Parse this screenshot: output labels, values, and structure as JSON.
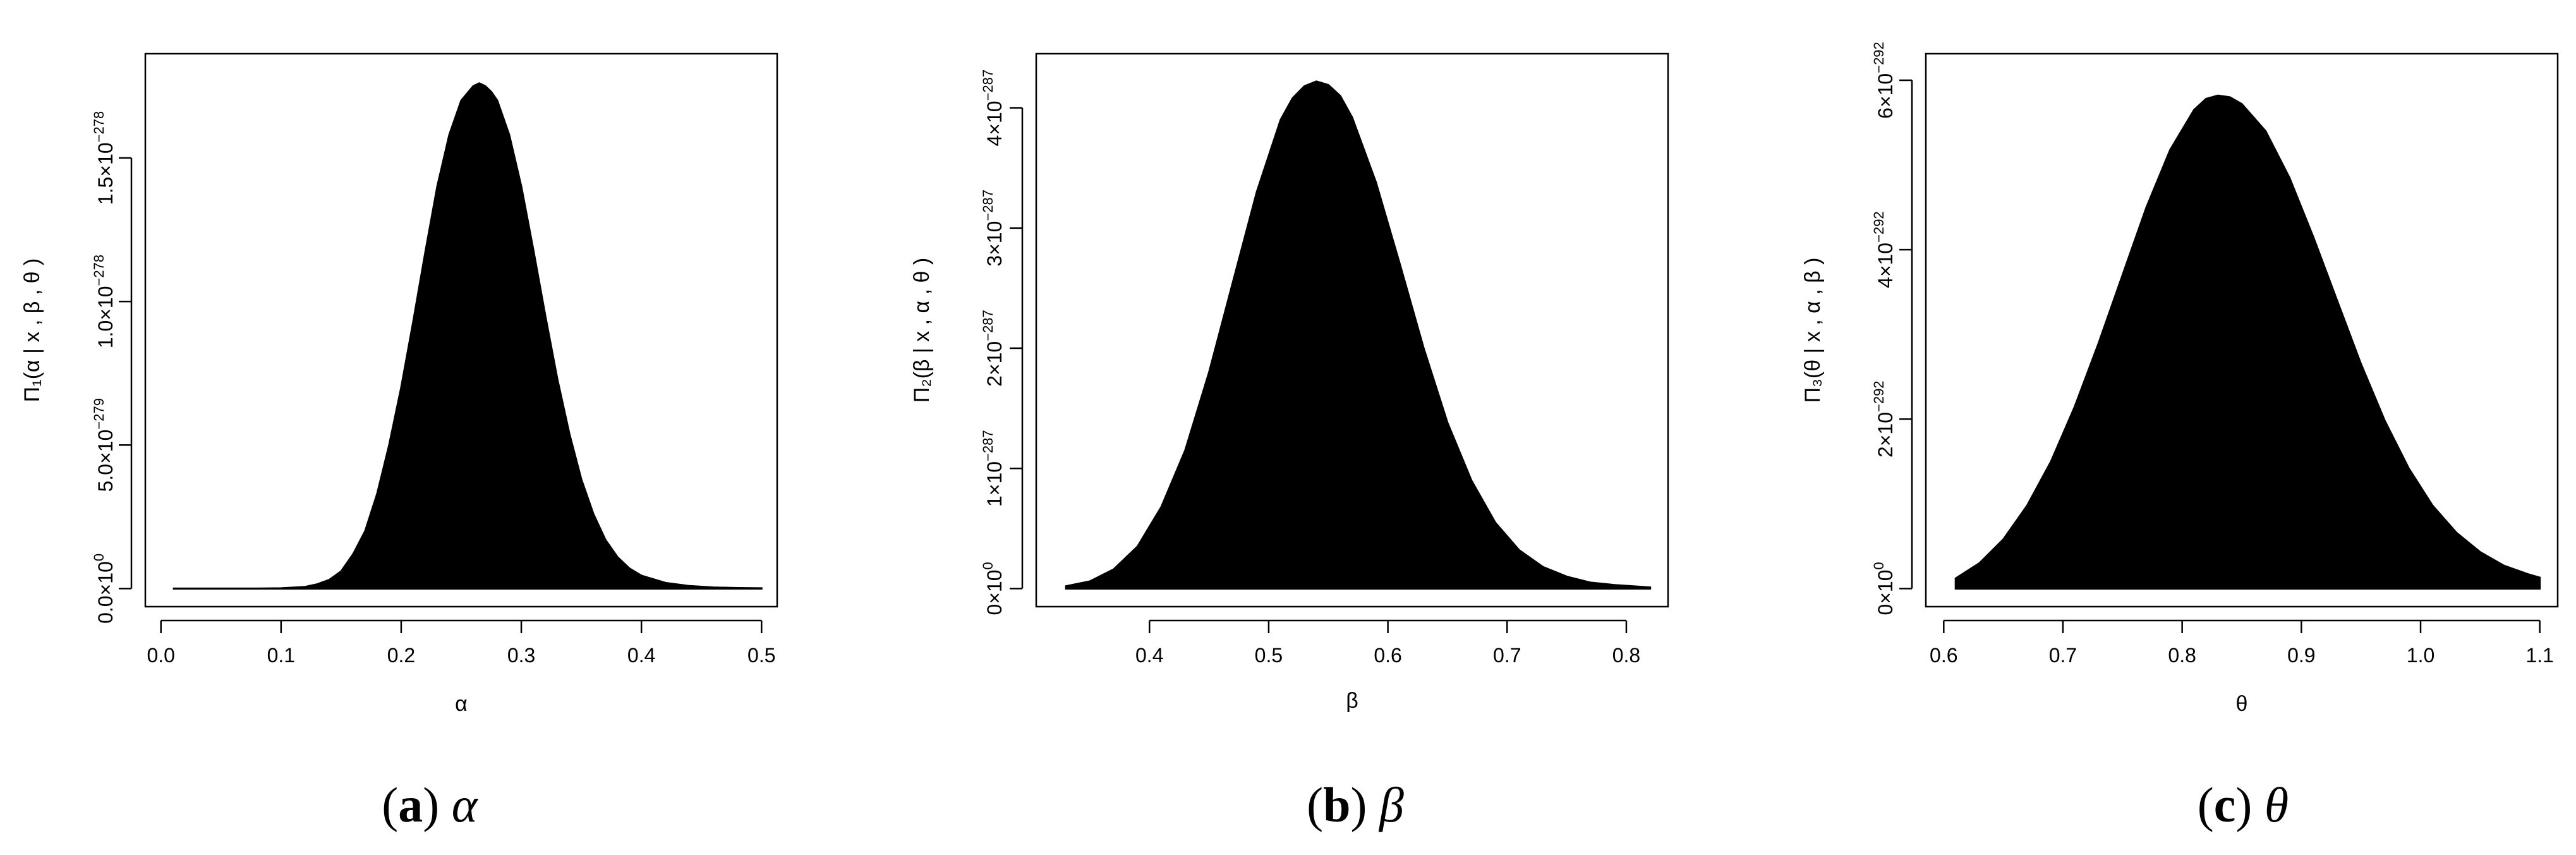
{
  "chart_data": [
    {
      "type": "area",
      "caption": {
        "open": "(",
        "letter": "a",
        "close": ")",
        "symbol": "α"
      },
      "xlabel": "α",
      "ylabel": "Π₁(α | x ,  β ,  θ )",
      "xlim": [
        0.0,
        0.5
      ],
      "ylim": [
        0.0,
        1.8e-278
      ],
      "xticks": [
        "0.0",
        "0.1",
        "0.2",
        "0.3",
        "0.4",
        "0.5"
      ],
      "yticks": [
        {
          "value": 0,
          "mantissa": "0.0×10",
          "exp": "0"
        },
        {
          "value": 5e-279,
          "mantissa": "5.0×10",
          "exp": "−279"
        },
        {
          "value": 1e-278,
          "mantissa": "1.0×10",
          "exp": "−278"
        },
        {
          "value": 1.5e-278,
          "mantissa": "1.5×10",
          "exp": "−278"
        }
      ],
      "series": [
        {
          "x": [
            0.01,
            0.05,
            0.08,
            0.1,
            0.12,
            0.13,
            0.14,
            0.15,
            0.16,
            0.17,
            0.18,
            0.19,
            0.2,
            0.21,
            0.22,
            0.23,
            0.24,
            0.25,
            0.26,
            0.265,
            0.27,
            0.275,
            0.28,
            0.29,
            0.3,
            0.31,
            0.32,
            0.33,
            0.34,
            0.35,
            0.36,
            0.37,
            0.38,
            0.39,
            0.4,
            0.42,
            0.44,
            0.46,
            0.48,
            0.5
          ],
          "y": [
            0,
            0,
            0,
            1e-281,
            6e-281,
            1.5e-280,
            3e-280,
            6e-280,
            1.2e-279,
            2e-279,
            3.3e-279,
            5e-279,
            7e-279,
            9.3e-279,
            1.17e-278,
            1.4e-278,
            1.58e-278,
            1.7e-278,
            1.75e-278,
            1.76e-278,
            1.75e-278,
            1.73e-278,
            1.7e-278,
            1.58e-278,
            1.4e-278,
            1.18e-278,
            9.5e-279,
            7.3e-279,
            5.4e-279,
            3.8e-279,
            2.6e-279,
            1.7e-279,
            1.1e-279,
            7e-280,
            4.5e-280,
            2e-280,
            9e-281,
            4e-281,
            2e-281,
            1e-281
          ]
        }
      ]
    },
    {
      "type": "area",
      "caption": {
        "open": "(",
        "letter": "b",
        "close": ")",
        "symbol": "β"
      },
      "xlabel": "β",
      "ylabel": "Π₂(β | x ,  α ,  θ )",
      "xlim": [
        0.32,
        0.82
      ],
      "ylim": [
        0.0,
        4.3e-287
      ],
      "xticks": [
        "0.4",
        "0.5",
        "0.6",
        "0.7",
        "0.8"
      ],
      "yticks": [
        {
          "value": 0,
          "mantissa": "0×10",
          "exp": "0"
        },
        {
          "value": 1e-287,
          "mantissa": "1×10",
          "exp": "−287"
        },
        {
          "value": 2e-287,
          "mantissa": "2×10",
          "exp": "−287"
        },
        {
          "value": 3e-287,
          "mantissa": "3×10",
          "exp": "−287"
        },
        {
          "value": 4e-287,
          "mantissa": "4×10",
          "exp": "−287"
        }
      ],
      "series": [
        {
          "x": [
            0.33,
            0.35,
            0.37,
            0.39,
            0.41,
            0.43,
            0.45,
            0.47,
            0.49,
            0.51,
            0.52,
            0.53,
            0.54,
            0.55,
            0.56,
            0.57,
            0.59,
            0.61,
            0.63,
            0.65,
            0.67,
            0.69,
            0.71,
            0.73,
            0.75,
            0.77,
            0.79,
            0.82
          ],
          "y": [
            2e-289,
            6e-289,
            1.6e-288,
            3.5e-288,
            6.8e-288,
            1.15e-287,
            1.8e-287,
            2.55e-287,
            3.3e-287,
            3.9e-287,
            4.08e-287,
            4.18e-287,
            4.22e-287,
            4.19e-287,
            4.1e-287,
            3.92e-287,
            3.38e-287,
            2.7e-287,
            2e-287,
            1.38e-287,
            9e-288,
            5.5e-288,
            3.2e-288,
            1.8e-288,
            1e-288,
            5e-289,
            3e-289,
            1e-289
          ]
        }
      ]
    },
    {
      "type": "area",
      "caption": {
        "open": "(",
        "letter": "c",
        "close": ")",
        "symbol": "θ"
      },
      "xlabel": "θ",
      "ylabel": "Π₃(θ | x ,  α ,  β )",
      "xlim": [
        0.6,
        1.1
      ],
      "ylim": [
        0.0,
        6.1e-292
      ],
      "xticks": [
        "0.6",
        "0.7",
        "0.8",
        "0.9",
        "1.0",
        "1.1"
      ],
      "yticks": [
        {
          "value": 0,
          "mantissa": "0×10",
          "exp": "0"
        },
        {
          "value": 2e-292,
          "mantissa": "2×10",
          "exp": "−292"
        },
        {
          "value": 4e-292,
          "mantissa": "4×10",
          "exp": "−292"
        },
        {
          "value": 6e-292,
          "mantissa": "6×10",
          "exp": "−292"
        }
      ],
      "series": [
        {
          "x": [
            0.61,
            0.63,
            0.65,
            0.67,
            0.69,
            0.71,
            0.73,
            0.75,
            0.77,
            0.79,
            0.81,
            0.82,
            0.83,
            0.84,
            0.85,
            0.87,
            0.89,
            0.91,
            0.93,
            0.95,
            0.97,
            0.99,
            1.01,
            1.03,
            1.05,
            1.07,
            1.09,
            1.1
          ],
          "y": [
            1.2e-293,
            3e-293,
            5.8e-293,
            9.8e-293,
            1.5e-292,
            2.15e-292,
            2.9e-292,
            3.7e-292,
            4.5e-292,
            5.18e-292,
            5.65e-292,
            5.78e-292,
            5.82e-292,
            5.8e-292,
            5.72e-292,
            5.4e-292,
            4.85e-292,
            4.15e-292,
            3.4e-292,
            2.65e-292,
            1.98e-292,
            1.42e-292,
            9.8e-293,
            6.6e-293,
            4.3e-293,
            2.7e-293,
            1.7e-293,
            1.3e-293
          ]
        }
      ]
    }
  ]
}
